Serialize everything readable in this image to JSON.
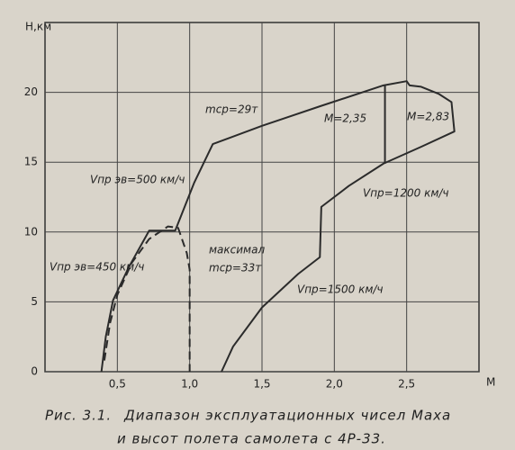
{
  "chart_data": {
    "type": "line",
    "y_label": "Н,км",
    "x_label": "М",
    "xlim": [
      0,
      3
    ],
    "ylim": [
      0,
      25
    ],
    "xticks": [
      {
        "value": 0.5,
        "label": "0,5"
      },
      {
        "value": 1.0,
        "label": "1,0"
      },
      {
        "value": 1.5,
        "label": "1,5"
      },
      {
        "value": 2.0,
        "label": "2,0"
      },
      {
        "value": 2.5,
        "label": "2,5"
      }
    ],
    "yticks": [
      0,
      5,
      10,
      15,
      20
    ],
    "grid": true,
    "series": [
      {
        "color": "#2b2b2b",
        "style": "solid",
        "x": [
          0.39,
          0.42,
          0.47,
          0.58,
          0.72,
          0.9,
          1.03,
          1.16,
          1.5,
          1.9,
          2.34,
          2.5,
          2.52,
          2.6,
          2.72,
          2.81,
          2.83,
          2.6,
          2.34,
          2.1,
          1.91,
          1.9,
          1.75,
          1.5,
          1.3,
          1.22
        ],
        "values": [
          0,
          2.5,
          5.1,
          7.5,
          10.1,
          10.1,
          13.5,
          16.3,
          17.6,
          19.0,
          20.5,
          20.8,
          20.5,
          20.4,
          19.9,
          19.3,
          17.2,
          16.1,
          14.9,
          13.3,
          11.8,
          8.2,
          7.0,
          4.6,
          1.8,
          0
        ]
      },
      {
        "color": "#2b2b2b",
        "style": "solid",
        "x": [
          2.35,
          2.35
        ],
        "values": [
          20.5,
          14.9
        ]
      },
      {
        "color": "#2b2b2b",
        "style": "dashed",
        "x": [
          0.41,
          0.45,
          0.5,
          0.6,
          0.72,
          0.85,
          0.92,
          0.98,
          1.0,
          1.0
        ],
        "values": [
          0.8,
          3.5,
          5.5,
          7.8,
          9.5,
          10.4,
          10.3,
          8.5,
          7.3,
          0
        ]
      }
    ],
    "annotations": [
      "mср=29т",
      "M=2,35",
      "M=2,83",
      "Vпр эв=500 км/ч",
      "Vпр=1200 км/ч",
      "Vпр эв=450 км/ч",
      "максимал",
      "mср=33т",
      "Vпр=1500 км/ч"
    ]
  },
  "caption": {
    "label": "Рис. 3.1.",
    "line1": "Диапазон эксплуатационных чисел Маха",
    "line2": "и высот полета самолета с 4Р-33."
  }
}
